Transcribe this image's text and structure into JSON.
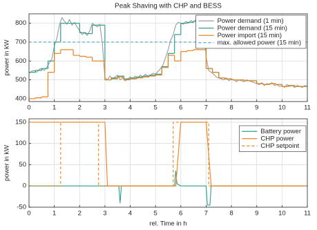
{
  "chart_data": [
    {
      "type": "line",
      "title": "Peak Shaving with CHP and BESS",
      "ylabel": "power in kW",
      "xlim": [
        0,
        11
      ],
      "xticks": [
        0,
        1,
        2,
        3,
        4,
        5,
        6,
        7,
        8,
        9,
        10,
        11
      ],
      "ylim": [
        385,
        850
      ],
      "yticks": [
        400,
        500,
        600,
        700,
        800
      ],
      "grid": true,
      "legend": "upper right",
      "series": [
        {
          "name": "Power demand (1 min)",
          "color": "#9a9a9a",
          "x": [
            0,
            0.1,
            0.2,
            0.3,
            0.4,
            0.5,
            0.6,
            0.7,
            0.8,
            0.9,
            1,
            1.1,
            1.2,
            1.3,
            1.4,
            1.5,
            1.6,
            1.7,
            1.8,
            1.9,
            2,
            2.1,
            2.2,
            2.3,
            2.4,
            2.5,
            2.6,
            2.7,
            2.8,
            2.9,
            3,
            3.1,
            3.2,
            3.3,
            3.4,
            3.5,
            3.6,
            3.7,
            3.8,
            3.9,
            4,
            4.1,
            4.2,
            4.3,
            4.4,
            4.5,
            4.6,
            4.7,
            4.8,
            4.9,
            5,
            5.1,
            5.2,
            5.3,
            5.4,
            5.5,
            5.6,
            5.7,
            5.8,
            5.9,
            6,
            6.1,
            6.2,
            6.3,
            6.4,
            6.5,
            6.6,
            6.7,
            6.8,
            6.9,
            7,
            7.1,
            7.2,
            7.3,
            7.4,
            7.5,
            7.6,
            7.7,
            7.8,
            7.9,
            8,
            8.1,
            8.2,
            8.3,
            8.4,
            8.5,
            8.6,
            8.7,
            8.8,
            8.9,
            9,
            9.1,
            9.2,
            9.3,
            9.4,
            9.5,
            9.6,
            9.7,
            9.8,
            9.9,
            10,
            10.1,
            10.2,
            10.3,
            10.4,
            10.5,
            10.6,
            10.7,
            10.8,
            10.9,
            11
          ],
          "values": [
            535,
            545,
            550,
            540,
            555,
            560,
            550,
            565,
            590,
            610,
            680,
            720,
            790,
            830,
            810,
            795,
            820,
            790,
            805,
            780,
            760,
            740,
            750,
            735,
            760,
            800,
            790,
            780,
            795,
            690,
            510,
            500,
            520,
            505,
            515,
            525,
            500,
            510,
            495,
            505,
            515,
            505,
            520,
            510,
            525,
            515,
            530,
            520,
            525,
            535,
            530,
            545,
            560,
            580,
            620,
            660,
            710,
            740,
            790,
            805,
            800,
            795,
            810,
            800,
            815,
            805,
            820,
            810,
            800,
            815,
            620,
            550,
            540,
            530,
            515,
            510,
            505,
            500,
            510,
            495,
            505,
            500,
            490,
            500,
            495,
            490,
            500,
            495,
            490,
            485,
            480,
            475,
            485,
            470,
            480,
            475,
            485,
            470,
            475,
            465,
            470,
            460,
            475,
            465,
            470,
            460,
            470,
            465,
            460,
            470,
            465
          ]
        },
        {
          "name": "Power demand (15 min)",
          "color": "#2e9e8a",
          "drawstyle": "steps-post",
          "x": [
            0,
            0.25,
            0.5,
            0.75,
            1,
            1.25,
            1.5,
            1.75,
            2,
            2.25,
            2.5,
            2.75,
            3,
            3.25,
            3.5,
            3.75,
            4,
            4.25,
            4.5,
            4.75,
            5,
            5.25,
            5.5,
            5.75,
            6,
            6.25,
            6.5,
            6.75,
            7,
            7.25,
            7.5,
            7.75,
            8,
            8.25,
            8.5,
            8.75,
            9,
            9.25,
            9.5,
            9.75,
            10,
            10.25,
            10.5,
            10.75,
            11
          ],
          "values": [
            540,
            550,
            560,
            600,
            700,
            800,
            800,
            800,
            750,
            745,
            790,
            790,
            500,
            510,
            520,
            505,
            510,
            515,
            520,
            525,
            530,
            570,
            640,
            740,
            800,
            805,
            810,
            810,
            560,
            540,
            510,
            505,
            500,
            500,
            495,
            495,
            480,
            475,
            480,
            475,
            465,
            470,
            465,
            465,
            465
          ]
        },
        {
          "name": "Power import (15 min)",
          "color": "#e8821e",
          "drawstyle": "steps-post",
          "x": [
            0,
            0.25,
            0.5,
            0.75,
            1,
            1.25,
            1.5,
            1.75,
            2,
            2.25,
            2.5,
            2.75,
            3,
            3.25,
            3.5,
            3.75,
            4,
            4.25,
            4.5,
            4.75,
            5,
            5.25,
            5.5,
            5.75,
            6,
            6.25,
            6.5,
            6.75,
            7,
            7.25,
            7.5,
            7.75,
            8,
            8.25,
            8.5,
            8.75,
            9,
            9.25,
            9.5,
            9.75,
            10,
            10.25,
            10.5,
            10.75,
            11
          ],
          "values": [
            400,
            405,
            410,
            540,
            640,
            660,
            660,
            630,
            625,
            620,
            600,
            600,
            500,
            505,
            515,
            500,
            505,
            510,
            515,
            520,
            525,
            565,
            630,
            600,
            650,
            655,
            660,
            660,
            560,
            540,
            510,
            505,
            500,
            500,
            495,
            495,
            480,
            475,
            480,
            475,
            465,
            470,
            465,
            465,
            465
          ]
        },
        {
          "name": "max. allowed power (15 min)",
          "color": "#4aa6c0",
          "linestyle": "dashed",
          "x": [
            0,
            11
          ],
          "values": [
            700,
            700
          ]
        }
      ]
    },
    {
      "type": "line",
      "ylabel": "power in kW",
      "xlabel": "rel. Time in h",
      "xlim": [
        0,
        11
      ],
      "xticks": [
        0,
        1,
        2,
        3,
        4,
        5,
        6,
        7,
        8,
        9,
        10,
        11
      ],
      "ylim": [
        -50,
        158
      ],
      "yticks": [
        -50,
        0,
        50,
        100,
        150
      ],
      "grid": true,
      "legend": "upper right",
      "series": [
        {
          "name": "Battery power",
          "color": "#2e9e8a",
          "x": [
            0,
            3.55,
            3.6,
            3.65,
            5.75,
            5.8,
            5.85,
            6,
            7,
            7.05,
            7.15,
            7.2,
            11
          ],
          "values": [
            0,
            0,
            -40,
            0,
            0,
            35,
            5,
            0,
            0,
            -45,
            -45,
            0,
            0
          ]
        },
        {
          "name": "CHP power",
          "color": "#e8821e",
          "x": [
            0,
            3,
            3.1,
            5.8,
            6,
            7,
            7.2,
            11
          ],
          "values": [
            150,
            150,
            0,
            0,
            150,
            150,
            0,
            0
          ]
        },
        {
          "name": "CHP setpoint",
          "color": "#e8821e",
          "linestyle": "dashed",
          "x": [
            0,
            1.25,
            1.25,
            2.75,
            2.75,
            5.7,
            5.7,
            7.1,
            7.1,
            11
          ],
          "values": [
            0,
            0,
            150,
            150,
            0,
            0,
            150,
            150,
            0,
            0
          ]
        }
      ]
    }
  ]
}
